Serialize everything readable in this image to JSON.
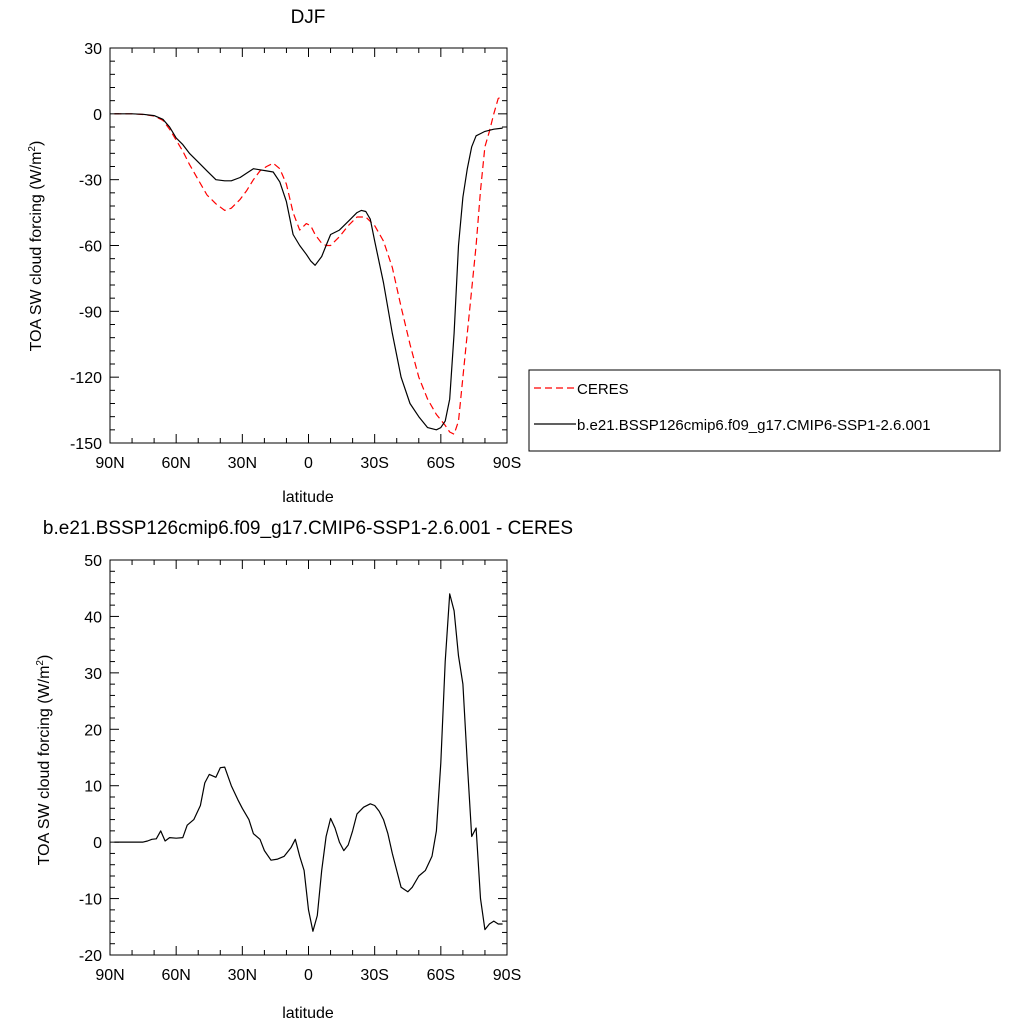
{
  "chart_data": [
    {
      "type": "line",
      "title": "DJF",
      "xlabel": "latitude",
      "ylabel": "TOA SW cloud forcing (W/m",
      "ylabel_sup": "2",
      "ylabel_end": ")",
      "xlim": [
        90,
        -90
      ],
      "ylim": [
        -150,
        30
      ],
      "xticks": [
        90,
        60,
        30,
        0,
        -30,
        -60,
        -90
      ],
      "xtick_labels": [
        "90N",
        "60N",
        "30N",
        "0",
        "30S",
        "60S",
        "90S"
      ],
      "yticks": [
        30,
        0,
        -30,
        -60,
        -90,
        -120,
        -150
      ],
      "ytick_labels": [
        "30",
        "0",
        "-30",
        "-60",
        "-90",
        "-120",
        "-150"
      ],
      "legend_position": "right",
      "series": [
        {
          "name": "CERES",
          "color": "#ff0000",
          "dash": "dashed",
          "x": [
            88,
            80,
            75,
            70,
            66,
            63,
            60,
            57,
            54,
            50,
            46,
            42,
            38,
            35,
            31,
            28,
            25,
            22,
            19,
            16,
            13,
            10,
            7,
            4,
            1,
            -1,
            -3,
            -6,
            -8,
            -10,
            -14,
            -18,
            -22,
            -26,
            -30,
            -34,
            -38,
            -42,
            -46,
            -50,
            -54,
            -58,
            -62,
            -64,
            -66,
            -68,
            -70,
            -72,
            -74,
            -76,
            -78,
            -80,
            -82,
            -84,
            -86,
            -88
          ],
          "y": [
            0,
            0,
            -0.3,
            -1,
            -3,
            -7,
            -12,
            -17,
            -23,
            -30,
            -37,
            -41,
            -44,
            -43,
            -39,
            -35,
            -30,
            -26,
            -24,
            -22.5,
            -25,
            -32,
            -45,
            -53,
            -50,
            -51,
            -55,
            -59,
            -60,
            -60,
            -56,
            -51,
            -47,
            -47,
            -51,
            -58,
            -70,
            -88,
            -105,
            -120,
            -130,
            -137,
            -142,
            -145,
            -146,
            -140,
            -120,
            -100,
            -80,
            -60,
            -35,
            -15,
            -8,
            0,
            7,
            8
          ]
        },
        {
          "name": "b.e21.BSSP126cmip6.f09_g17.CMIP6-SSP1-2.6.001",
          "color": "#000000",
          "dash": "solid",
          "x": [
            88,
            80,
            75,
            70,
            66,
            63,
            60,
            57,
            54,
            50,
            46,
            42,
            38,
            35,
            31,
            28,
            25,
            22,
            19,
            16,
            13,
            10,
            7,
            4,
            1,
            -1,
            -3,
            -6,
            -8,
            -10,
            -14,
            -18,
            -22,
            -24,
            -26,
            -28,
            -30,
            -34,
            -38,
            -42,
            -46,
            -50,
            -54,
            -58,
            -60,
            -62,
            -64,
            -66,
            -68,
            -70,
            -72,
            -74,
            -76,
            -78,
            -80,
            -84,
            -88
          ],
          "y": [
            0,
            0,
            -0.2,
            -0.8,
            -2.5,
            -6,
            -11,
            -14,
            -18,
            -22,
            -26,
            -30,
            -30.5,
            -30.5,
            -29,
            -27,
            -25,
            -25.5,
            -26,
            -26.5,
            -31,
            -40,
            -55,
            -60,
            -64,
            -67,
            -69,
            -65,
            -60,
            -55,
            -53,
            -49,
            -45,
            -44,
            -44.5,
            -48,
            -58,
            -77,
            -100,
            -120,
            -132,
            -138,
            -143,
            -144,
            -143,
            -140,
            -130,
            -100,
            -60,
            -38,
            -25,
            -15,
            -10,
            -9,
            -8,
            -7,
            -6.5
          ]
        }
      ]
    },
    {
      "type": "line",
      "title": "b.e21.BSSP126cmip6.f09_g17.CMIP6-SSP1-2.6.001 - CERES",
      "xlabel": "latitude",
      "ylabel": "TOA SW cloud forcing (W/m",
      "ylabel_sup": "2",
      "ylabel_end": ")",
      "xlim": [
        90,
        -90
      ],
      "ylim": [
        -20,
        50
      ],
      "xticks": [
        90,
        60,
        30,
        0,
        -30,
        -60,
        -90
      ],
      "xtick_labels": [
        "90N",
        "60N",
        "30N",
        "0",
        "30S",
        "60S",
        "90S"
      ],
      "yticks": [
        50,
        40,
        30,
        20,
        10,
        0,
        -10,
        -20
      ],
      "ytick_labels": [
        "50",
        "40",
        "30",
        "20",
        "10",
        "0",
        "-10",
        "-20"
      ],
      "series": [
        {
          "color": "#000000",
          "dash": "solid",
          "x": [
            88,
            80,
            75,
            73,
            71,
            69,
            67,
            65,
            63,
            60,
            57,
            55,
            52,
            49,
            47,
            45,
            42,
            40,
            38,
            35,
            32,
            30,
            27,
            25,
            22,
            20,
            17,
            14,
            11,
            8,
            6,
            4,
            2,
            0,
            -2,
            -4,
            -6,
            -8,
            -10,
            -12,
            -14,
            -16,
            -18,
            -20,
            -22,
            -25,
            -28,
            -30,
            -32,
            -34,
            -36,
            -38,
            -40,
            -42,
            -45,
            -47,
            -50,
            -53,
            -56,
            -58,
            -60,
            -62,
            -64,
            -66,
            -68,
            -70,
            -72,
            -74,
            -76,
            -78,
            -80,
            -82,
            -84,
            -86,
            -88
          ],
          "y": [
            0,
            0,
            0,
            0.2,
            0.5,
            0.6,
            2.0,
            0.2,
            0.8,
            0.7,
            0.8,
            3.0,
            4.0,
            6.5,
            10.5,
            12.0,
            11.5,
            13.2,
            13.3,
            10.0,
            7.5,
            6.0,
            4.0,
            1.5,
            0.5,
            -1.5,
            -3.2,
            -3.0,
            -2.5,
            -1.0,
            0.5,
            -2.5,
            -5.0,
            -12.0,
            -15.8,
            -13.0,
            -5.0,
            1.0,
            4.2,
            2.5,
            0,
            -1.5,
            -0.5,
            2.0,
            5.0,
            6.2,
            6.8,
            6.5,
            5.5,
            4.0,
            1.5,
            -2.0,
            -5.0,
            -8.0,
            -8.8,
            -8.0,
            -6.0,
            -5.0,
            -2.5,
            2.0,
            14.0,
            32.0,
            44.0,
            41.0,
            33.0,
            28.0,
            14.0,
            1.0,
            2.5,
            -10.0,
            -15.5,
            -14.5,
            -14.0,
            -14.5,
            -14.5
          ]
        }
      ]
    }
  ]
}
